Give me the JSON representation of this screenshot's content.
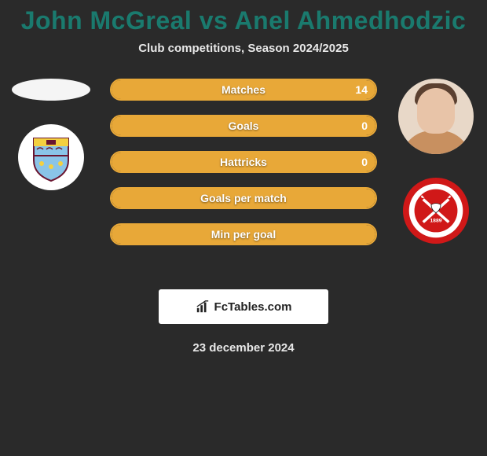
{
  "title": "John McGreal vs Anel Ahmedhodzic",
  "subtitle": "Club competitions, Season 2024/2025",
  "title_color": "#1a7a6e",
  "text_color": "#e8e8e8",
  "background_color": "#2a2a2a",
  "player_left": {
    "name": "John McGreal",
    "has_photo": false,
    "club_badge": {
      "bg": "#ffffff",
      "inner_bg": "#8ac4e8",
      "accent": "#f4d040",
      "dark": "#6a1530"
    }
  },
  "player_right": {
    "name": "Anel Ahmedhodzic",
    "has_photo": true,
    "club_badge": {
      "bg": "#d01818",
      "inner_bg": "#ffffff",
      "accent": "#000000",
      "year": "1889"
    }
  },
  "stats": [
    {
      "label": "Matches",
      "left_val": "",
      "right_val": "14",
      "left_pct": 0,
      "right_pct": 100,
      "fill_color": "#e8a838",
      "border_color": "#e8a838"
    },
    {
      "label": "Goals",
      "left_val": "",
      "right_val": "0",
      "left_pct": 50,
      "right_pct": 50,
      "fill_color": "#e8a838",
      "border_color": "#e8a838"
    },
    {
      "label": "Hattricks",
      "left_val": "",
      "right_val": "0",
      "left_pct": 50,
      "right_pct": 50,
      "fill_color": "#e8a838",
      "border_color": "#e8a838"
    },
    {
      "label": "Goals per match",
      "left_val": "",
      "right_val": "",
      "left_pct": 50,
      "right_pct": 50,
      "fill_color": "#e8a838",
      "border_color": "#e8a838"
    },
    {
      "label": "Min per goal",
      "left_val": "",
      "right_val": "",
      "left_pct": 50,
      "right_pct": 50,
      "fill_color": "#e8a838",
      "border_color": "#e8a838"
    }
  ],
  "watermark": "FcTables.com",
  "date": "23 december 2024",
  "stat_bar": {
    "height": 28,
    "border_radius": 14,
    "gap": 18,
    "label_fontsize": 14
  }
}
